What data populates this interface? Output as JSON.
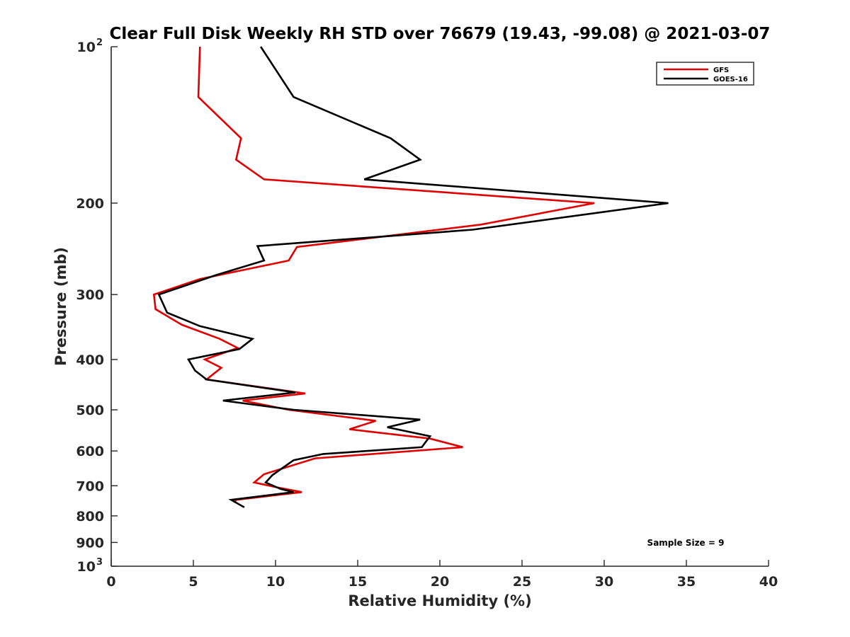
{
  "chart_data": {
    "type": "line",
    "title": "Clear Full Disk Weekly RH STD over 76679 (19.43, -99.08) @ 2021-03-07",
    "xlabel": "Relative Humidity (%)",
    "ylabel": "Pressure (mb)",
    "xlim": [
      0,
      40
    ],
    "ylim": [
      100,
      1000
    ],
    "y_scale": "log",
    "y_reversed": true,
    "xticks": [
      0,
      5,
      10,
      15,
      20,
      25,
      30,
      35,
      40
    ],
    "xtick_labels": [
      "0",
      "5",
      "10",
      "15",
      "20",
      "25",
      "30",
      "35",
      "40"
    ],
    "yticks": [
      {
        "value": 100,
        "base": "10",
        "exp": "2"
      },
      {
        "value": 200,
        "label": "200"
      },
      {
        "value": 300,
        "label": "300"
      },
      {
        "value": 400,
        "label": "400"
      },
      {
        "value": 500,
        "label": "500"
      },
      {
        "value": 600,
        "label": "600"
      },
      {
        "value": 700,
        "label": "700"
      },
      {
        "value": 800,
        "label": "800"
      },
      {
        "value": 900,
        "label": "900"
      },
      {
        "value": 1000,
        "base": "10",
        "exp": "3"
      }
    ],
    "grid": false,
    "legend_position": "top-right",
    "annotation": "Sample Size = 9",
    "series": [
      {
        "name": "GFS",
        "color": "#e00000",
        "points": [
          [
            5.4,
            100
          ],
          [
            5.3,
            125
          ],
          [
            7.9,
            150
          ],
          [
            7.6,
            165
          ],
          [
            9.3,
            180
          ],
          [
            29.4,
            200
          ],
          [
            22.5,
            220
          ],
          [
            11.3,
            243
          ],
          [
            10.8,
            258
          ],
          [
            5.4,
            280
          ],
          [
            2.6,
            300
          ],
          [
            2.7,
            320
          ],
          [
            4.3,
            343
          ],
          [
            6.6,
            365
          ],
          [
            7.7,
            380
          ],
          [
            5.7,
            400
          ],
          [
            6.7,
            415
          ],
          [
            5.8,
            437
          ],
          [
            11.8,
            465
          ],
          [
            8.0,
            480
          ],
          [
            10.8,
            500
          ],
          [
            16.1,
            525
          ],
          [
            14.5,
            545
          ],
          [
            19.4,
            568
          ],
          [
            21.4,
            590
          ],
          [
            12.4,
            620
          ],
          [
            9.3,
            665
          ],
          [
            8.7,
            690
          ],
          [
            10.1,
            705
          ],
          [
            11.6,
            720
          ],
          [
            7.6,
            745
          ],
          [
            7.5,
            755
          ]
        ]
      },
      {
        "name": "GOES-16",
        "color": "#000000",
        "points": [
          [
            9.1,
            100
          ],
          [
            11.1,
            125
          ],
          [
            17.0,
            150
          ],
          [
            18.8,
            165
          ],
          [
            15.4,
            180
          ],
          [
            33.9,
            200
          ],
          [
            22.0,
            225
          ],
          [
            8.9,
            242
          ],
          [
            9.3,
            258
          ],
          [
            6.4,
            275
          ],
          [
            2.9,
            300
          ],
          [
            3.4,
            325
          ],
          [
            5.4,
            345
          ],
          [
            8.6,
            365
          ],
          [
            7.8,
            382
          ],
          [
            4.7,
            400
          ],
          [
            5.1,
            420
          ],
          [
            5.8,
            437
          ],
          [
            11.2,
            463
          ],
          [
            6.8,
            480
          ],
          [
            11.1,
            500
          ],
          [
            18.8,
            522
          ],
          [
            16.8,
            540
          ],
          [
            19.4,
            562
          ],
          [
            18.9,
            590
          ],
          [
            12.9,
            608
          ],
          [
            11.1,
            625
          ],
          [
            9.8,
            668
          ],
          [
            9.4,
            690
          ],
          [
            10.3,
            710
          ],
          [
            11.1,
            720
          ],
          [
            7.3,
            745
          ],
          [
            8.1,
            770
          ]
        ]
      }
    ]
  }
}
